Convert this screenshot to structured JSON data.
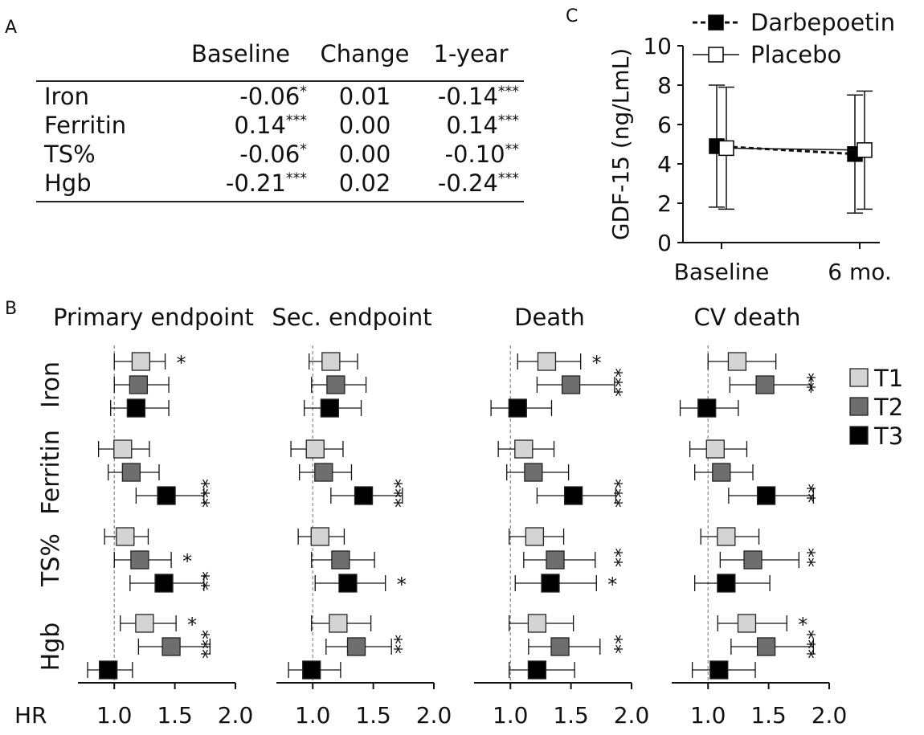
{
  "panels": {
    "a": "A",
    "b": "B",
    "c": "C"
  },
  "table": {
    "columns": [
      "Baseline",
      "Change",
      "1-year"
    ],
    "rows": [
      {
        "label": "Iron",
        "cells": [
          "-0.06*",
          "0.01",
          "-0.14***"
        ]
      },
      {
        "label": "Ferritin",
        "cells": [
          "0.14***",
          "0.00",
          "0.14***"
        ]
      },
      {
        "label": "TS%",
        "cells": [
          "-0.06*",
          "0.00",
          "-0.10**"
        ]
      },
      {
        "label": "Hgb",
        "cells": [
          "-0.21***",
          "0.02",
          "-0.24***"
        ]
      }
    ]
  },
  "chart_data": [
    {
      "type": "line",
      "panel": "C",
      "ylabel": "GDF-15 (ng/LmL)",
      "categories": [
        "Baseline",
        "6 mo."
      ],
      "ylim": [
        0,
        10
      ],
      "yticks": [
        0,
        2,
        4,
        6,
        8,
        10
      ],
      "legend_position": "top",
      "series": [
        {
          "name": "Darbepoetin",
          "marker": "filled-square",
          "line": "dashed-bold",
          "values": [
            4.9,
            4.5
          ],
          "err_low": [
            1.8,
            1.5
          ],
          "err_high": [
            8.0,
            7.5
          ]
        },
        {
          "name": "Placebo",
          "marker": "open-square",
          "line": "solid-thin",
          "values": [
            4.8,
            4.7
          ],
          "err_low": [
            1.7,
            1.7
          ],
          "err_high": [
            7.9,
            7.7
          ]
        }
      ]
    },
    {
      "type": "scatter",
      "panel": "B",
      "subtype": "forest",
      "xlabel": "HR",
      "xlim": [
        0.7,
        2.0
      ],
      "xticks": [
        "1.0",
        "1.5",
        "2.0"
      ],
      "reference_line": 1.0,
      "row_groups": [
        "Iron",
        "Ferritin",
        "TS%",
        "Hgb"
      ],
      "legend": [
        {
          "name": "T1",
          "color": "#d4d4d4"
        },
        {
          "name": "T2",
          "color": "#6e6e6e"
        },
        {
          "name": "T3",
          "color": "#000000"
        }
      ],
      "facets": [
        {
          "title": "Primary endpoint",
          "groups": [
            {
              "group": "Iron",
              "points": [
                {
                  "tertile": "T1",
                  "hr": 1.22,
                  "lo": 1.0,
                  "hi": 1.42,
                  "sig": "*"
                },
                {
                  "tertile": "T2",
                  "hr": 1.2,
                  "lo": 1.0,
                  "hi": 1.45,
                  "sig": ""
                },
                {
                  "tertile": "T3",
                  "hr": 1.18,
                  "lo": 0.97,
                  "hi": 1.45,
                  "sig": ""
                }
              ]
            },
            {
              "group": "Ferritin",
              "points": [
                {
                  "tertile": "T1",
                  "hr": 1.07,
                  "lo": 0.87,
                  "hi": 1.29,
                  "sig": ""
                },
                {
                  "tertile": "T2",
                  "hr": 1.14,
                  "lo": 0.95,
                  "hi": 1.37,
                  "sig": ""
                },
                {
                  "tertile": "T3",
                  "hr": 1.43,
                  "lo": 1.18,
                  "hi": 1.74,
                  "sig": "***"
                }
              ]
            },
            {
              "group": "TS%",
              "points": [
                {
                  "tertile": "T1",
                  "hr": 1.09,
                  "lo": 0.92,
                  "hi": 1.28,
                  "sig": ""
                },
                {
                  "tertile": "T2",
                  "hr": 1.21,
                  "lo": 1.0,
                  "hi": 1.47,
                  "sig": "*"
                },
                {
                  "tertile": "T3",
                  "hr": 1.41,
                  "lo": 1.13,
                  "hi": 1.74,
                  "sig": "**"
                }
              ]
            },
            {
              "group": "Hgb",
              "points": [
                {
                  "tertile": "T1",
                  "hr": 1.25,
                  "lo": 1.05,
                  "hi": 1.51,
                  "sig": "*"
                },
                {
                  "tertile": "T2",
                  "hr": 1.47,
                  "lo": 1.2,
                  "hi": 1.79,
                  "sig": "***"
                },
                {
                  "tertile": "T3",
                  "hr": 0.95,
                  "lo": 0.78,
                  "hi": 1.15,
                  "sig": ""
                }
              ]
            }
          ]
        },
        {
          "title": "Sec. endpoint",
          "groups": [
            {
              "group": "Iron",
              "points": [
                {
                  "tertile": "T1",
                  "hr": 1.15,
                  "lo": 0.97,
                  "hi": 1.37,
                  "sig": ""
                },
                {
                  "tertile": "T2",
                  "hr": 1.19,
                  "lo": 0.99,
                  "hi": 1.44,
                  "sig": ""
                },
                {
                  "tertile": "T3",
                  "hr": 1.14,
                  "lo": 0.93,
                  "hi": 1.4,
                  "sig": ""
                }
              ]
            },
            {
              "group": "Ferritin",
              "points": [
                {
                  "tertile": "T1",
                  "hr": 1.02,
                  "lo": 0.82,
                  "hi": 1.25,
                  "sig": ""
                },
                {
                  "tertile": "T2",
                  "hr": 1.09,
                  "lo": 0.89,
                  "hi": 1.32,
                  "sig": ""
                },
                {
                  "tertile": "T3",
                  "hr": 1.42,
                  "lo": 1.15,
                  "hi": 1.74,
                  "sig": "***"
                }
              ]
            },
            {
              "group": "TS%",
              "points": [
                {
                  "tertile": "T1",
                  "hr": 1.06,
                  "lo": 0.88,
                  "hi": 1.26,
                  "sig": ""
                },
                {
                  "tertile": "T2",
                  "hr": 1.23,
                  "lo": 0.99,
                  "hi": 1.51,
                  "sig": ""
                },
                {
                  "tertile": "T3",
                  "hr": 1.29,
                  "lo": 1.02,
                  "hi": 1.6,
                  "sig": "*"
                }
              ]
            },
            {
              "group": "Hgb",
              "points": [
                {
                  "tertile": "T1",
                  "hr": 1.21,
                  "lo": 0.99,
                  "hi": 1.48,
                  "sig": ""
                },
                {
                  "tertile": "T2",
                  "hr": 1.36,
                  "lo": 1.11,
                  "hi": 1.65,
                  "sig": "**"
                },
                {
                  "tertile": "T3",
                  "hr": 0.99,
                  "lo": 0.8,
                  "hi": 1.23,
                  "sig": ""
                }
              ]
            }
          ]
        },
        {
          "title": "Death",
          "groups": [
            {
              "group": "Iron",
              "points": [
                {
                  "tertile": "T1",
                  "hr": 1.3,
                  "lo": 1.06,
                  "hi": 1.58,
                  "sig": "*"
                },
                {
                  "tertile": "T2",
                  "hr": 1.5,
                  "lo": 1.22,
                  "hi": 1.86,
                  "sig": "***"
                },
                {
                  "tertile": "T3",
                  "hr": 1.06,
                  "lo": 0.84,
                  "hi": 1.34,
                  "sig": ""
                }
              ]
            },
            {
              "group": "Ferritin",
              "points": [
                {
                  "tertile": "T1",
                  "hr": 1.11,
                  "lo": 0.9,
                  "hi": 1.36,
                  "sig": ""
                },
                {
                  "tertile": "T2",
                  "hr": 1.19,
                  "lo": 0.97,
                  "hi": 1.48,
                  "sig": ""
                },
                {
                  "tertile": "T3",
                  "hr": 1.52,
                  "lo": 1.22,
                  "hi": 1.87,
                  "sig": "***"
                }
              ]
            },
            {
              "group": "TS%",
              "points": [
                {
                  "tertile": "T1",
                  "hr": 1.2,
                  "lo": 0.99,
                  "hi": 1.44,
                  "sig": ""
                },
                {
                  "tertile": "T2",
                  "hr": 1.37,
                  "lo": 1.11,
                  "hi": 1.7,
                  "sig": "**"
                },
                {
                  "tertile": "T3",
                  "hr": 1.33,
                  "lo": 1.04,
                  "hi": 1.71,
                  "sig": "*"
                }
              ]
            },
            {
              "group": "Hgb",
              "points": [
                {
                  "tertile": "T1",
                  "hr": 1.22,
                  "lo": 0.99,
                  "hi": 1.52,
                  "sig": ""
                },
                {
                  "tertile": "T2",
                  "hr": 1.41,
                  "lo": 1.15,
                  "hi": 1.74,
                  "sig": "**"
                },
                {
                  "tertile": "T3",
                  "hr": 1.22,
                  "lo": 0.99,
                  "hi": 1.53,
                  "sig": ""
                }
              ]
            }
          ]
        },
        {
          "title": "CV death",
          "groups": [
            {
              "group": "Iron",
              "points": [
                {
                  "tertile": "T1",
                  "hr": 1.24,
                  "lo": 1.0,
                  "hi": 1.56,
                  "sig": ""
                },
                {
                  "tertile": "T2",
                  "hr": 1.47,
                  "lo": 1.18,
                  "hi": 1.85,
                  "sig": "**"
                },
                {
                  "tertile": "T3",
                  "hr": 0.99,
                  "lo": 0.77,
                  "hi": 1.25,
                  "sig": ""
                }
              ]
            },
            {
              "group": "Ferritin",
              "points": [
                {
                  "tertile": "T1",
                  "hr": 1.06,
                  "lo": 0.85,
                  "hi": 1.32,
                  "sig": ""
                },
                {
                  "tertile": "T2",
                  "hr": 1.11,
                  "lo": 0.89,
                  "hi": 1.37,
                  "sig": ""
                },
                {
                  "tertile": "T3",
                  "hr": 1.48,
                  "lo": 1.17,
                  "hi": 1.87,
                  "sig": "**"
                }
              ]
            },
            {
              "group": "TS%",
              "points": [
                {
                  "tertile": "T1",
                  "hr": 1.15,
                  "lo": 0.94,
                  "hi": 1.42,
                  "sig": ""
                },
                {
                  "tertile": "T2",
                  "hr": 1.37,
                  "lo": 1.1,
                  "hi": 1.75,
                  "sig": "**"
                },
                {
                  "tertile": "T3",
                  "hr": 1.15,
                  "lo": 0.89,
                  "hi": 1.51,
                  "sig": ""
                }
              ]
            },
            {
              "group": "Hgb",
              "points": [
                {
                  "tertile": "T1",
                  "hr": 1.32,
                  "lo": 1.08,
                  "hi": 1.65,
                  "sig": "*"
                },
                {
                  "tertile": "T2",
                  "hr": 1.48,
                  "lo": 1.19,
                  "hi": 1.87,
                  "sig": "***"
                },
                {
                  "tertile": "T3",
                  "hr": 1.09,
                  "lo": 0.87,
                  "hi": 1.39,
                  "sig": ""
                }
              ]
            }
          ]
        }
      ]
    }
  ]
}
